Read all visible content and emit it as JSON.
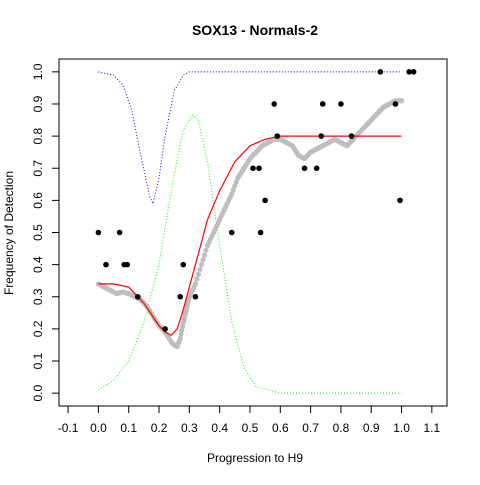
{
  "chart_data": {
    "type": "scatter",
    "title": "SOX13 - Normals-2",
    "xlabel": "Progression to H9",
    "ylabel": "Frequency of Detection",
    "xlim": [
      -0.13,
      1.15
    ],
    "ylim": [
      -0.04,
      1.04
    ],
    "x_ticks": [
      -0.1,
      0.0,
      0.1,
      0.2,
      0.3,
      0.4,
      0.5,
      0.6,
      0.7,
      0.8,
      0.9,
      1.0,
      1.1
    ],
    "x_tick_labels": [
      "-0.1",
      "0.0",
      "0.1",
      "0.2",
      "0.3",
      "0.4",
      "0.5",
      "0.6",
      "0.7",
      "0.8",
      "0.9",
      "1.0",
      "1.1"
    ],
    "y_ticks": [
      0.0,
      0.1,
      0.2,
      0.3,
      0.4,
      0.5,
      0.6,
      0.7,
      0.8,
      0.9,
      1.0
    ],
    "y_tick_labels": [
      "0.0",
      "0.1",
      "0.2",
      "0.3",
      "0.4",
      "0.5",
      "0.6",
      "0.7",
      "0.8",
      "0.9",
      "1.0"
    ],
    "grid": false,
    "legend": "none",
    "colors": {
      "observed": "#000000",
      "smoothed": "#bebebe",
      "fit": "#ff0000",
      "upper_curve": "#0000ff",
      "lower_curve": "#00ff00"
    },
    "series": [
      {
        "style": "black-points",
        "points": [
          [
            0.0,
            0.5
          ],
          [
            0.025,
            0.4
          ],
          [
            0.07,
            0.5
          ],
          [
            0.085,
            0.4
          ],
          [
            0.095,
            0.4
          ],
          [
            0.13,
            0.3
          ],
          [
            0.22,
            0.2
          ],
          [
            0.27,
            0.3
          ],
          [
            0.28,
            0.4
          ],
          [
            0.32,
            0.3
          ],
          [
            0.44,
            0.5
          ],
          [
            0.51,
            0.7
          ],
          [
            0.53,
            0.7
          ],
          [
            0.535,
            0.5
          ],
          [
            0.55,
            0.6
          ],
          [
            0.58,
            0.9
          ],
          [
            0.59,
            0.8
          ],
          [
            0.68,
            0.7
          ],
          [
            0.72,
            0.7
          ],
          [
            0.735,
            0.8
          ],
          [
            0.74,
            0.9
          ],
          [
            0.8,
            0.9
          ],
          [
            0.835,
            0.8
          ],
          [
            0.93,
            1.0
          ],
          [
            0.98,
            0.9
          ],
          [
            0.995,
            0.6
          ],
          [
            1.025,
            1.0
          ],
          [
            1.04,
            1.0
          ]
        ]
      },
      {
        "style": "grey-smoothed-points",
        "points": [
          [
            0.0,
            0.34
          ],
          [
            0.02,
            0.33
          ],
          [
            0.04,
            0.32
          ],
          [
            0.06,
            0.31
          ],
          [
            0.08,
            0.315
          ],
          [
            0.1,
            0.31
          ],
          [
            0.12,
            0.3
          ],
          [
            0.14,
            0.29
          ],
          [
            0.16,
            0.27
          ],
          [
            0.18,
            0.24
          ],
          [
            0.2,
            0.21
          ],
          [
            0.22,
            0.19
          ],
          [
            0.24,
            0.16
          ],
          [
            0.25,
            0.15
          ],
          [
            0.26,
            0.145
          ],
          [
            0.27,
            0.17
          ],
          [
            0.28,
            0.22
          ],
          [
            0.29,
            0.26
          ],
          [
            0.3,
            0.3
          ],
          [
            0.32,
            0.34
          ],
          [
            0.34,
            0.4
          ],
          [
            0.36,
            0.46
          ],
          [
            0.38,
            0.5
          ],
          [
            0.4,
            0.54
          ],
          [
            0.42,
            0.58
          ],
          [
            0.44,
            0.62
          ],
          [
            0.46,
            0.67
          ],
          [
            0.48,
            0.7
          ],
          [
            0.5,
            0.73
          ],
          [
            0.52,
            0.75
          ],
          [
            0.54,
            0.77
          ],
          [
            0.56,
            0.78
          ],
          [
            0.58,
            0.79
          ],
          [
            0.6,
            0.79
          ],
          [
            0.62,
            0.78
          ],
          [
            0.64,
            0.77
          ],
          [
            0.66,
            0.74
          ],
          [
            0.68,
            0.73
          ],
          [
            0.7,
            0.75
          ],
          [
            0.72,
            0.76
          ],
          [
            0.74,
            0.77
          ],
          [
            0.76,
            0.78
          ],
          [
            0.78,
            0.79
          ],
          [
            0.8,
            0.78
          ],
          [
            0.82,
            0.77
          ],
          [
            0.84,
            0.79
          ],
          [
            0.86,
            0.81
          ],
          [
            0.88,
            0.83
          ],
          [
            0.9,
            0.85
          ],
          [
            0.92,
            0.87
          ],
          [
            0.94,
            0.89
          ],
          [
            0.96,
            0.9
          ],
          [
            0.98,
            0.91
          ],
          [
            1.0,
            0.91
          ]
        ]
      },
      {
        "style": "red-line",
        "points": [
          [
            0.0,
            0.34
          ],
          [
            0.05,
            0.34
          ],
          [
            0.1,
            0.33
          ],
          [
            0.15,
            0.28
          ],
          [
            0.2,
            0.21
          ],
          [
            0.22,
            0.19
          ],
          [
            0.24,
            0.18
          ],
          [
            0.26,
            0.2
          ],
          [
            0.28,
            0.26
          ],
          [
            0.3,
            0.33
          ],
          [
            0.32,
            0.4
          ],
          [
            0.34,
            0.47
          ],
          [
            0.36,
            0.54
          ],
          [
            0.4,
            0.63
          ],
          [
            0.45,
            0.72
          ],
          [
            0.5,
            0.77
          ],
          [
            0.55,
            0.79
          ],
          [
            0.6,
            0.8
          ],
          [
            0.7,
            0.8
          ],
          [
            1.0,
            0.8
          ]
        ]
      },
      {
        "style": "blue-dotted-line",
        "points": [
          [
            0.0,
            1.0
          ],
          [
            0.05,
            0.99
          ],
          [
            0.08,
            0.96
          ],
          [
            0.11,
            0.88
          ],
          [
            0.14,
            0.74
          ],
          [
            0.17,
            0.61
          ],
          [
            0.18,
            0.59
          ],
          [
            0.2,
            0.67
          ],
          [
            0.22,
            0.8
          ],
          [
            0.25,
            0.94
          ],
          [
            0.28,
            0.99
          ],
          [
            0.3,
            1.0
          ],
          [
            1.0,
            1.0
          ]
        ]
      },
      {
        "style": "green-dotted-line",
        "points": [
          [
            0.0,
            0.01
          ],
          [
            0.05,
            0.04
          ],
          [
            0.1,
            0.1
          ],
          [
            0.15,
            0.22
          ],
          [
            0.2,
            0.4
          ],
          [
            0.25,
            0.68
          ],
          [
            0.28,
            0.82
          ],
          [
            0.31,
            0.865
          ],
          [
            0.33,
            0.85
          ],
          [
            0.36,
            0.72
          ],
          [
            0.4,
            0.46
          ],
          [
            0.44,
            0.22
          ],
          [
            0.48,
            0.08
          ],
          [
            0.52,
            0.02
          ],
          [
            0.6,
            0.0
          ],
          [
            1.0,
            0.0
          ]
        ]
      }
    ]
  }
}
